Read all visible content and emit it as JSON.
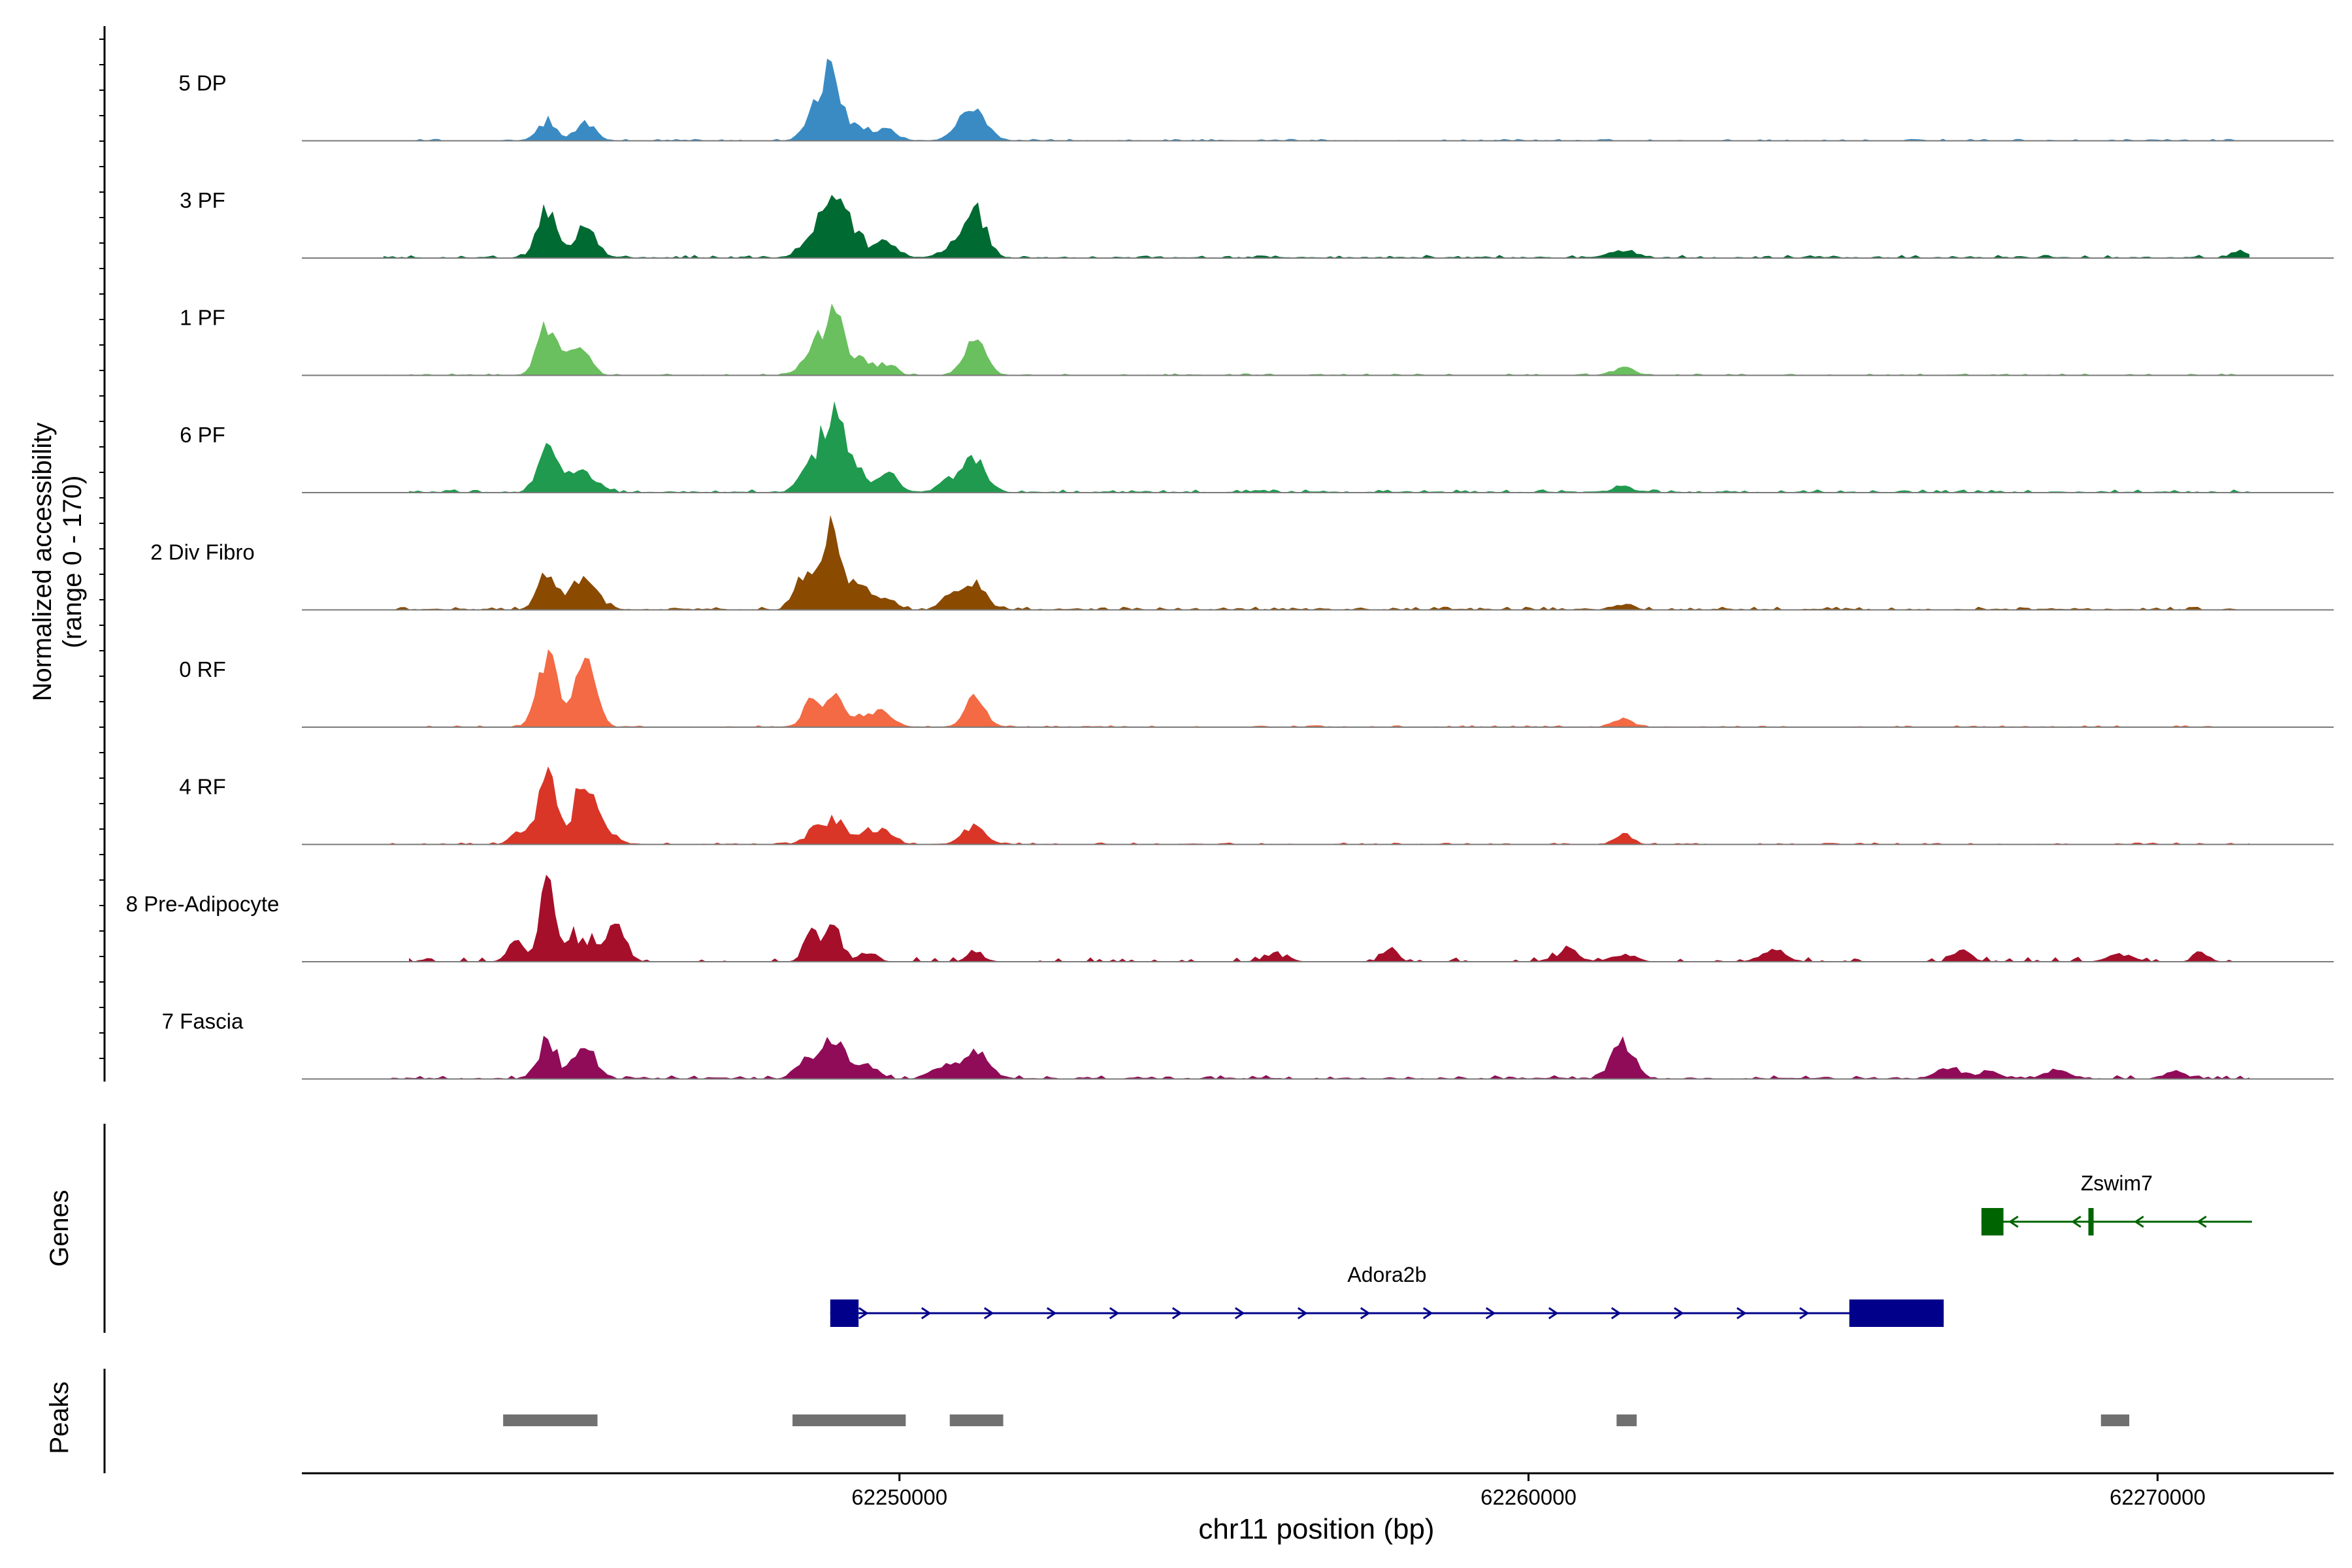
{
  "chart_data": {
    "type": "area",
    "title": "",
    "ylabel_line1": "Normalized accessibility",
    "ylabel_line2": "(range 0 - 170)",
    "y_range": [
      0,
      170
    ],
    "xlabel": "chr11 position (bp)",
    "xlim": [
      62240500,
      62272800
    ],
    "x_ticks": [
      62250000,
      62260000,
      62270000
    ],
    "x_tick_labels": [
      "62250000",
      "62260000",
      "62270000"
    ],
    "track_labels": {
      "genes": "Genes",
      "peaks": "Peaks"
    },
    "tracks": [
      {
        "name": "5 DP",
        "color": "#3a8bc4",
        "peaks": [
          [
            62244400,
            30,
            150
          ],
          [
            62245000,
            26,
            150
          ],
          [
            62248600,
            28,
            150
          ],
          [
            62248900,
            110,
            160
          ],
          [
            62249400,
            20,
            150
          ],
          [
            62249800,
            16,
            160
          ],
          [
            62251200,
            42,
            200
          ],
          [
            62251000,
            16,
            160
          ]
        ],
        "noise": 3,
        "bg_start": 62241800,
        "bg_end": 62271300
      },
      {
        "name": "3 PF",
        "color": "#006a33",
        "peaks": [
          [
            62244400,
            75,
            150
          ],
          [
            62245000,
            50,
            170
          ],
          [
            62248600,
            35,
            160
          ],
          [
            62248950,
            80,
            170
          ],
          [
            62249300,
            38,
            150
          ],
          [
            62249800,
            26,
            150
          ],
          [
            62251200,
            75,
            170
          ],
          [
            62250800,
            15,
            160
          ],
          [
            62261500,
            12,
            200
          ],
          [
            62271300,
            10,
            120
          ]
        ],
        "noise": 5,
        "bg_start": 62241800,
        "bg_end": 62271500
      },
      {
        "name": "1 PF",
        "color": "#6abf5e",
        "peaks": [
          [
            62244400,
            75,
            150
          ],
          [
            62244800,
            22,
            150
          ],
          [
            62245000,
            22,
            140
          ],
          [
            62248600,
            30,
            160
          ],
          [
            62248950,
            88,
            170
          ],
          [
            62249400,
            25,
            140
          ],
          [
            62249800,
            18,
            140
          ],
          [
            62251200,
            48,
            170
          ],
          [
            62261500,
            10,
            170
          ]
        ],
        "noise": 3,
        "bg_start": 62241800,
        "bg_end": 62271300
      },
      {
        "name": "6 PF",
        "color": "#1f9a4e",
        "peaks": [
          [
            62244400,
            60,
            150
          ],
          [
            62244800,
            25,
            150
          ],
          [
            62245100,
            20,
            170
          ],
          [
            62248600,
            40,
            170
          ],
          [
            62248950,
            125,
            160
          ],
          [
            62249300,
            38,
            150
          ],
          [
            62249800,
            28,
            160
          ],
          [
            62251200,
            48,
            180
          ],
          [
            62250800,
            18,
            160
          ],
          [
            62261500,
            10,
            160
          ]
        ],
        "noise": 5,
        "bg_start": 62242200,
        "bg_end": 62271500
      },
      {
        "name": "2 Div Fibro",
        "color": "#8a4a00",
        "peaks": [
          [
            62244400,
            55,
            150
          ],
          [
            62245000,
            50,
            200
          ],
          [
            62248500,
            55,
            150
          ],
          [
            62248950,
            130,
            160
          ],
          [
            62249400,
            30,
            150
          ],
          [
            62249800,
            18,
            140
          ],
          [
            62251200,
            40,
            170
          ],
          [
            62250800,
            20,
            150
          ],
          [
            62261500,
            8,
            150
          ]
        ],
        "noise": 5,
        "bg_start": 62242000,
        "bg_end": 62271500
      },
      {
        "name": "0 RF",
        "color": "#f36a44",
        "peaks": [
          [
            62244400,
            115,
            150
          ],
          [
            62245000,
            110,
            160
          ],
          [
            62248600,
            45,
            130
          ],
          [
            62249000,
            50,
            150
          ],
          [
            62249500,
            22,
            150
          ],
          [
            62249800,
            18,
            140
          ],
          [
            62251200,
            42,
            160
          ],
          [
            62261500,
            15,
            130
          ]
        ],
        "noise": 3,
        "bg_start": 62241800,
        "bg_end": 62271500
      },
      {
        "name": "4 RF",
        "color": "#d93627",
        "peaks": [
          [
            62244400,
            110,
            140
          ],
          [
            62245000,
            105,
            160
          ],
          [
            62244000,
            20,
            150
          ],
          [
            62245400,
            15,
            150
          ],
          [
            62248700,
            25,
            170
          ],
          [
            62249000,
            30,
            160
          ],
          [
            62249500,
            20,
            150
          ],
          [
            62249800,
            16,
            150
          ],
          [
            62251200,
            28,
            170
          ],
          [
            62261500,
            15,
            140
          ]
        ],
        "noise": 3,
        "bg_start": 62241800,
        "bg_end": 62271500
      },
      {
        "name": "8 Pre-Adipocyte",
        "color": "#a50f2a",
        "peaks": [
          [
            62244400,
            140,
            110
          ],
          [
            62243900,
            30,
            140
          ],
          [
            62244800,
            40,
            120
          ],
          [
            62245500,
            58,
            150
          ],
          [
            62245100,
            28,
            120
          ],
          [
            62248600,
            45,
            120
          ],
          [
            62248950,
            50,
            140
          ],
          [
            62249500,
            15,
            140
          ],
          [
            62251200,
            18,
            120
          ],
          [
            62256000,
            10,
            200
          ],
          [
            62257800,
            20,
            120
          ],
          [
            62260600,
            14,
            200
          ],
          [
            62261500,
            12,
            200
          ],
          [
            62263900,
            18,
            200
          ],
          [
            62266900,
            18,
            130
          ],
          [
            62269400,
            12,
            200
          ],
          [
            62270700,
            15,
            120
          ]
        ],
        "noise": 8,
        "sparse": true,
        "bg_start": 62242200,
        "bg_end": 62271300
      },
      {
        "name": "7 Fascia",
        "color": "#900c58",
        "peaks": [
          [
            62244400,
            58,
            150
          ],
          [
            62245000,
            50,
            160
          ],
          [
            62248500,
            25,
            160
          ],
          [
            62248950,
            68,
            180
          ],
          [
            62249500,
            18,
            150
          ],
          [
            62251200,
            45,
            200
          ],
          [
            62250700,
            15,
            160
          ],
          [
            62261500,
            52,
            180
          ],
          [
            62266700,
            15,
            200
          ],
          [
            62267300,
            10,
            160
          ],
          [
            62268400,
            12,
            200
          ],
          [
            62270300,
            10,
            150
          ]
        ],
        "noise": 6,
        "bg_start": 62241800,
        "bg_end": 62271500
      }
    ],
    "genes": [
      {
        "name": "Adora2b",
        "start": 62248900,
        "end": 62266600,
        "strand": "+",
        "color": "#00008b",
        "exons": [
          [
            62248900,
            62249350
          ],
          [
            62265100,
            62266600
          ]
        ]
      },
      {
        "name": "Zswim7",
        "start": 62267200,
        "end": 62271500,
        "strand": "-",
        "color": "#006400",
        "exons": [
          [
            62267200,
            62267550
          ],
          [
            62268900,
            62268980
          ]
        ]
      }
    ],
    "peak_regions": [
      [
        62243700,
        62245200
      ],
      [
        62248300,
        62250100
      ],
      [
        62250800,
        62251650
      ],
      [
        62261400,
        62261720
      ],
      [
        62269100,
        62269550
      ]
    ],
    "peak_color": "#707070"
  }
}
